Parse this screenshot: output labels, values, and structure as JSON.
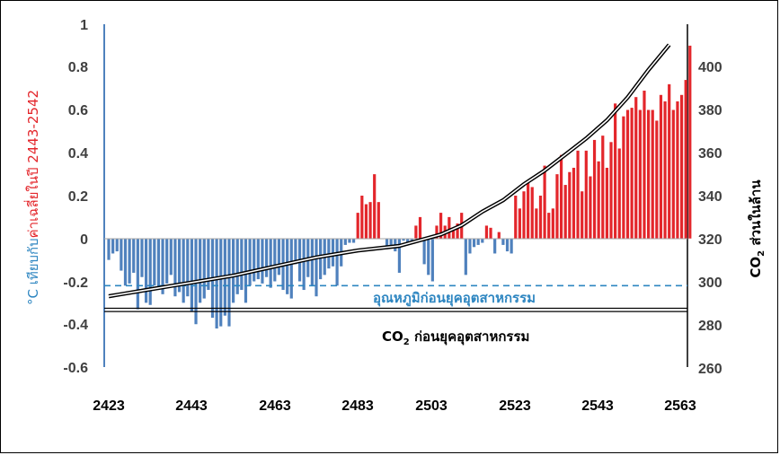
{
  "chart_data": {
    "type": "bar",
    "x_range": [
      2423,
      2563
    ],
    "x_ticks": [
      "2423",
      "2443",
      "2463",
      "2483",
      "2503",
      "2523",
      "2543",
      "2563"
    ],
    "left_axis": {
      "range": [
        -0.6,
        1
      ],
      "ticks": [
        "-0.6",
        "-0.4",
        "-0.2",
        "0",
        "0.2",
        "0.4",
        "0.6",
        "0.8",
        "1"
      ],
      "label_unit": "°C",
      "label_part1": " เทียบกับ",
      "label_part2": "ค่าเฉลี่ยในปี 2443-2542",
      "color_unit": "#2e86c1",
      "color_part1": "#2e86c1",
      "color_part2": "#e3262b"
    },
    "right_axis": {
      "range": [
        260,
        410
      ],
      "ticks": [
        "260",
        "280",
        "300",
        "320",
        "340",
        "360",
        "380",
        "400"
      ],
      "label_main": "CO",
      "label_sub": "2",
      "label_rest": "  ส่วนในล้าน"
    },
    "anomaly_series": {
      "start_year": 2423,
      "values": [
        -0.1,
        -0.07,
        -0.06,
        -0.15,
        -0.22,
        -0.21,
        -0.16,
        -0.33,
        -0.18,
        -0.3,
        -0.31,
        -0.22,
        -0.24,
        -0.26,
        -0.21,
        -0.17,
        -0.27,
        -0.25,
        -0.3,
        -0.27,
        -0.34,
        -0.4,
        -0.3,
        -0.28,
        -0.24,
        -0.37,
        -0.42,
        -0.41,
        -0.36,
        -0.41,
        -0.3,
        -0.26,
        -0.24,
        -0.3,
        -0.22,
        -0.2,
        -0.19,
        -0.21,
        -0.18,
        -0.23,
        -0.2,
        -0.17,
        -0.24,
        -0.26,
        -0.28,
        -0.12,
        -0.2,
        -0.24,
        -0.18,
        -0.22,
        -0.27,
        -0.19,
        -0.17,
        -0.14,
        -0.13,
        -0.22,
        -0.13,
        -0.03,
        -0.02,
        -0.02,
        0.12,
        0.2,
        0.16,
        0.17,
        0.3,
        0.17,
        0.0,
        -0.05,
        -0.04,
        -0.06,
        -0.16,
        -0.01,
        -0.02,
        -0.02,
        0.06,
        0.1,
        -0.12,
        -0.17,
        -0.2,
        0.06,
        0.12,
        0.06,
        0.1,
        0.04,
        0.07,
        0.12,
        -0.17,
        -0.07,
        -0.04,
        -0.03,
        -0.02,
        0.06,
        0.05,
        -0.07,
        0.03,
        -0.03,
        -0.06,
        -0.07,
        0.2,
        0.14,
        0.22,
        0.26,
        0.24,
        0.14,
        0.2,
        0.34,
        0.12,
        0.14,
        0.3,
        0.39,
        0.25,
        0.31,
        0.33,
        0.41,
        0.22,
        0.41,
        0.29,
        0.46,
        0.36,
        0.48,
        0.33,
        0.45,
        0.63,
        0.42,
        0.57,
        0.6,
        0.61,
        0.66,
        0.6,
        0.69,
        0.6,
        0.6,
        0.55,
        0.67,
        0.64,
        0.72,
        0.6,
        0.64,
        0.67,
        0.74,
        0.9
      ],
      "positive_color": "#e3262b",
      "negative_color": "#4f81bd"
    },
    "co2_series": {
      "points": [
        [
          2423,
          291
        ],
        [
          2433,
          294
        ],
        [
          2443,
          297
        ],
        [
          2453,
          300
        ],
        [
          2463,
          304
        ],
        [
          2473,
          308
        ],
        [
          2483,
          311
        ],
        [
          2493,
          313
        ],
        [
          2503,
          318
        ],
        [
          2508,
          322
        ],
        [
          2513,
          328
        ],
        [
          2518,
          333
        ],
        [
          2523,
          340
        ],
        [
          2528,
          346
        ],
        [
          2533,
          353
        ],
        [
          2538,
          360
        ],
        [
          2543,
          368
        ],
        [
          2548,
          378
        ],
        [
          2553,
          390
        ],
        [
          2558,
          401
        ]
      ]
    },
    "preindustrial_temp": {
      "value": -0.22,
      "label": "อุณหภูมิก่อนยุคอุตสาหกรรม",
      "color": "#2e86c1"
    },
    "preindustrial_co2": {
      "value": 285,
      "label_main": "CO",
      "label_sub": "2",
      "label_rest": "  ก่อนยุคอุตสาหกรรม"
    }
  }
}
